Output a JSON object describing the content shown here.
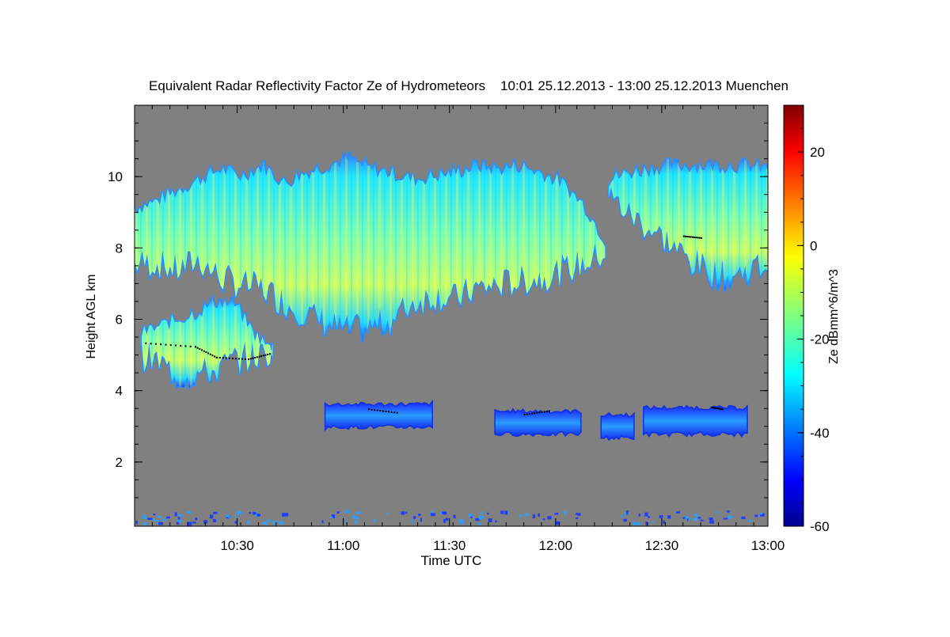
{
  "chart_data": {
    "type": "heatmap",
    "title": "Equivalent Radar Reflectivity Factor Ze of Hydrometeors    10:01 25.12.2013 - 13:00 25.12.2013 Muenchen",
    "xlabel": "Time UTC",
    "ylabel": "Height AGL km",
    "x_unit": "UTC time (HH:MM)",
    "xlim": [
      "10:01",
      "13:00"
    ],
    "x_ticks": [
      "10:30",
      "11:00",
      "11:30",
      "12:00",
      "12:30",
      "13:00"
    ],
    "ylim": [
      0.2,
      12.0
    ],
    "y_ticks": [
      2,
      4,
      6,
      8,
      10
    ],
    "background_color": "#808080",
    "colorbar": {
      "label": "Ze dBmm^6/m^3",
      "range": [
        -60,
        30
      ],
      "ticks": [
        -60,
        -40,
        -20,
        0,
        20
      ],
      "colormap": "jet"
    },
    "echo_regions": [
      {
        "name": "upper cirrus deck (west)",
        "time_range": [
          "10:01",
          "12:14"
        ],
        "top_km": [
          9.1,
          9.3,
          9.6,
          9.9,
          10.2,
          10.0,
          10.3,
          9.8,
          10.1,
          10.3,
          10.5,
          10.2,
          10.1,
          9.9,
          10.0,
          10.1,
          10.3,
          10.2,
          10.3,
          10.1,
          9.8,
          9.2,
          8.2
        ],
        "base_km": [
          7.4,
          7.4,
          7.2,
          7.5,
          7.0,
          6.8,
          6.7,
          6.3,
          6.0,
          5.7,
          5.5,
          5.6,
          5.8,
          6.3,
          6.5,
          6.4,
          6.7,
          6.8,
          6.9,
          7.0,
          7.2,
          7.4,
          7.7
        ],
        "peak_ze_dbz": -10
      },
      {
        "name": "upper cirrus deck (east)",
        "time_range": [
          "12:15",
          "13:00"
        ],
        "top_km": [
          9.9,
          10.1,
          10.2,
          10.3,
          10.3,
          10.3,
          10.3,
          10.3,
          10.2
        ],
        "base_km": [
          9.3,
          8.8,
          8.4,
          8.0,
          7.5,
          7.2,
          7.0,
          7.2,
          7.4
        ],
        "peak_ze_dbz": -20
      },
      {
        "name": "mid-level cloud",
        "time_range": [
          "10:03",
          "10:40"
        ],
        "top_km": [
          5.6,
          5.8,
          6.0,
          6.2,
          6.5,
          6.4,
          5.6,
          5.1
        ],
        "base_km": [
          4.8,
          4.6,
          4.2,
          4.3,
          4.4,
          4.7,
          4.8,
          4.9
        ],
        "peak_ze_dbz": -25
      },
      {
        "name": "low layer 1",
        "time_range": [
          "10:55",
          "11:25"
        ],
        "top_km": 3.6,
        "base_km": 3.0,
        "peak_ze_dbz": -35
      },
      {
        "name": "low layer 2",
        "time_range": [
          "11:43",
          "12:07"
        ],
        "top_km": 3.4,
        "base_km": 2.8,
        "peak_ze_dbz": -35
      },
      {
        "name": "low layer 3",
        "time_range": [
          "12:13",
          "12:22"
        ],
        "top_km": 3.3,
        "base_km": 2.7,
        "peak_ze_dbz": -40
      },
      {
        "name": "low layer 4",
        "time_range": [
          "12:25",
          "12:54"
        ],
        "top_km": 3.5,
        "base_km": 2.8,
        "peak_ze_dbz": -35
      }
    ]
  }
}
